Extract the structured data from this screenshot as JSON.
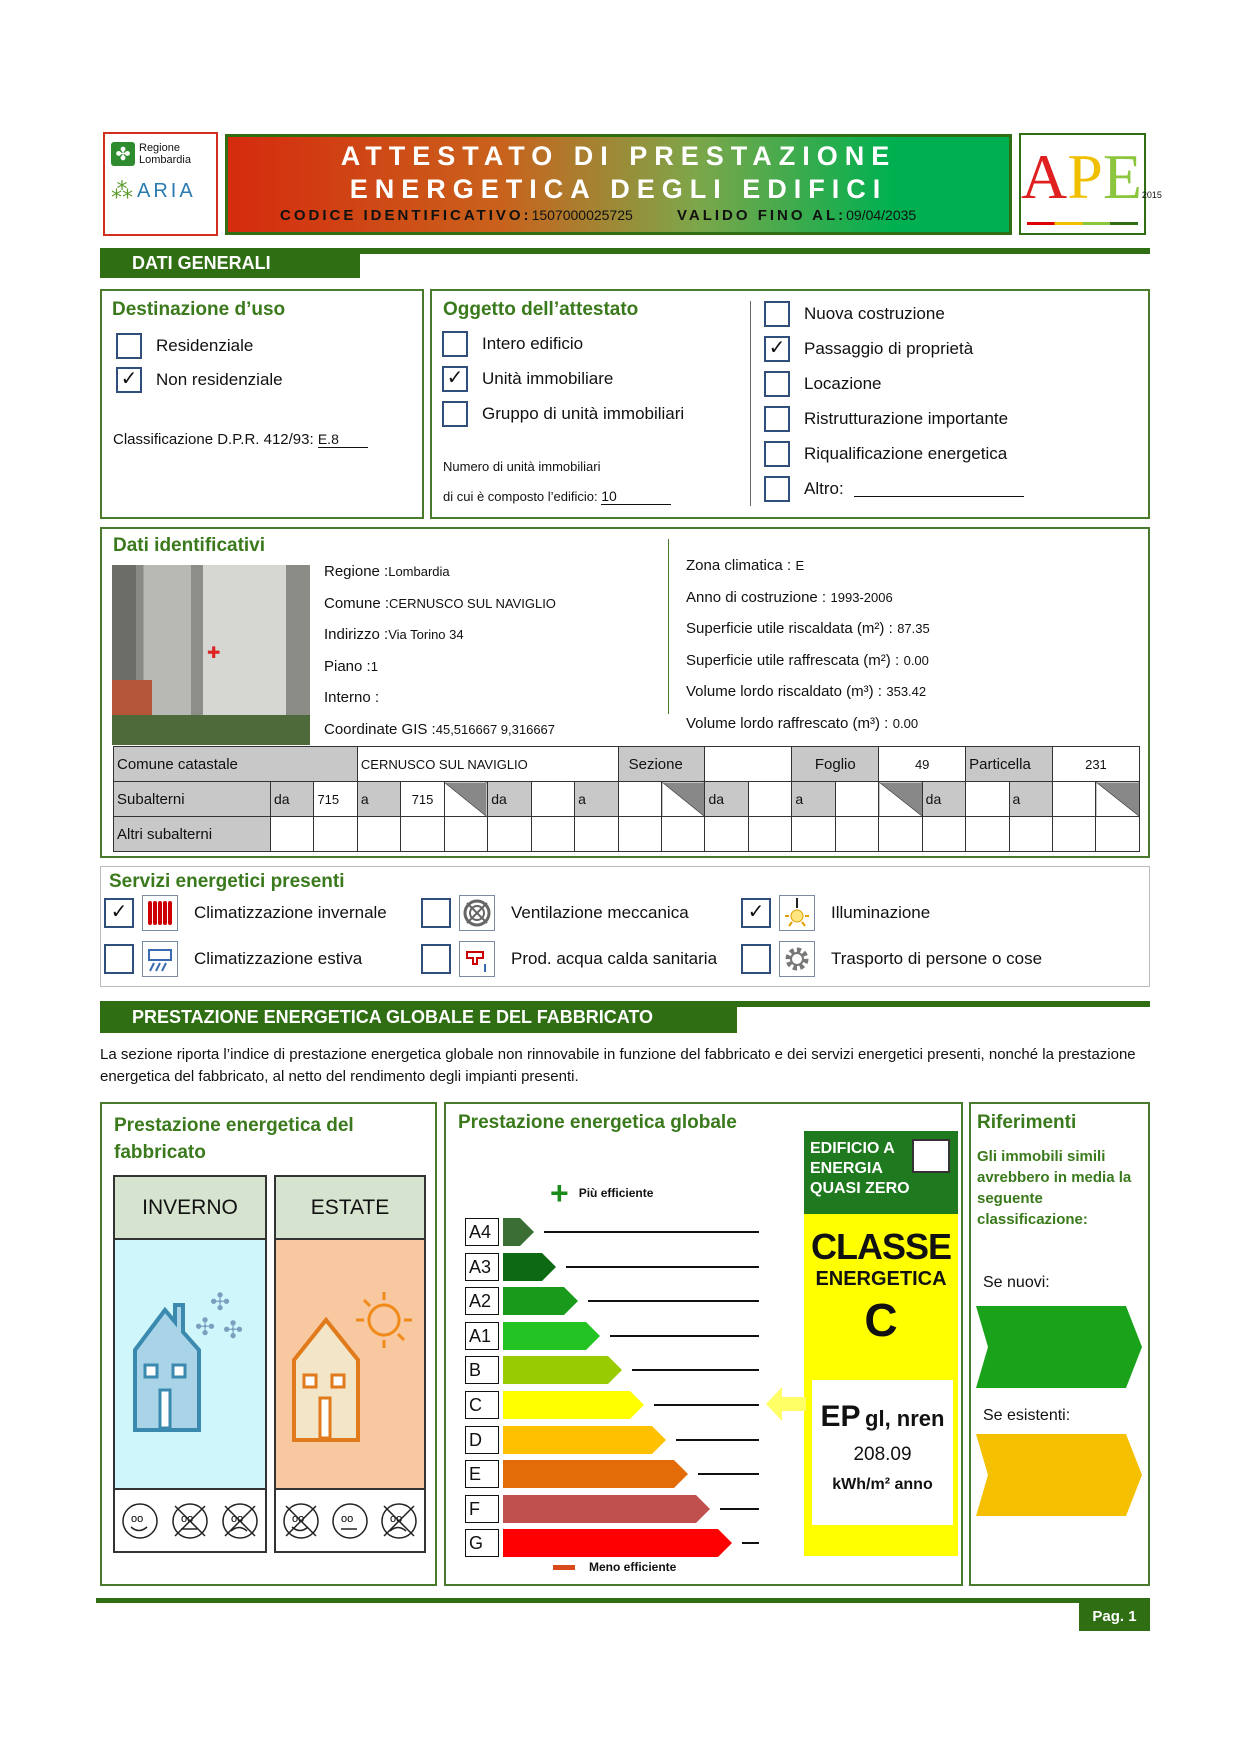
{
  "header": {
    "logo_region": "Regione Lombardia",
    "logo_aria": "ARIA",
    "title_line1": "ATTESTATO DI PRESTAZIONE",
    "title_line2": "ENERGETICA DEGLI EDIFICI",
    "codice_label": "CODICE IDENTIFICATIVO:",
    "codice_value": "1507000025725",
    "valido_label": "VALIDO FINO AL:",
    "valido_value": "09/04/2035",
    "ape_logo": "APE",
    "ape_year": "2015"
  },
  "dati_generali": {
    "section_title": "DATI GENERALI",
    "destinazione": {
      "title": "Destinazione d’uso",
      "options": [
        {
          "label": "Residenziale",
          "checked": false
        },
        {
          "label": "Non residenziale",
          "checked": true
        }
      ],
      "classificazione_label": "Classificazione D.P.R. 412/93:",
      "classificazione_value": "E.8"
    },
    "oggetto": {
      "title": "Oggetto dell’attestato",
      "options": [
        {
          "label": "Intero edificio",
          "checked": false
        },
        {
          "label": "Unità immobiliare",
          "checked": true
        },
        {
          "label": "Gruppo di unità immobiliari",
          "checked": false
        }
      ],
      "numero_label1": "Numero di unità immobiliari",
      "numero_label2": "di cui è composto l’edificio:",
      "numero_value": "10"
    },
    "motivazione": [
      {
        "label": "Nuova costruzione",
        "checked": false
      },
      {
        "label": "Passaggio di proprietà",
        "checked": true
      },
      {
        "label": "Locazione",
        "checked": false
      },
      {
        "label": "Ristrutturazione importante",
        "checked": false
      },
      {
        "label": "Riqualificazione energetica",
        "checked": false
      },
      {
        "label": "Altro:",
        "checked": false
      }
    ]
  },
  "identificativi": {
    "title": "Dati identificativi",
    "left": [
      {
        "label": "Regione :",
        "value": "Lombardia"
      },
      {
        "label": "Comune :",
        "value": "CERNUSCO SUL NAVIGLIO"
      },
      {
        "label": "Indirizzo :",
        "value": "Via Torino 34"
      },
      {
        "label": "Piano :",
        "value": "1"
      },
      {
        "label": "Interno :",
        "value": ""
      },
      {
        "label": "Coordinate GIS :",
        "value": "45,516667 9,316667"
      }
    ],
    "right": [
      {
        "label": "Zona climatica :",
        "value": "E"
      },
      {
        "label": "Anno di costruzione :",
        "value": "1993-2006"
      },
      {
        "label": "Superficie utile riscaldata (m²) :",
        "value": "87.35"
      },
      {
        "label": "Superficie utile raffrescata (m²) :",
        "value": "0.00"
      },
      {
        "label": "Volume lordo riscaldato (m³) :",
        "value": "353.42"
      },
      {
        "label": "Volume lordo raffrescato (m³) :",
        "value": "0.00"
      }
    ],
    "catasto": {
      "comune_label": "Comune catastale",
      "comune_value": "CERNUSCO SUL NAVIGLIO",
      "sezione_label": "Sezione",
      "sezione_value": "",
      "foglio_label": "Foglio",
      "foglio_value": "49",
      "particella_label": "Particella",
      "particella_value": "231",
      "subalterni_label": "Subalterni",
      "da": "da",
      "a": "a",
      "sub_da": "715",
      "sub_a": "715",
      "altri_label": "Altri subalterni"
    }
  },
  "servizi": {
    "title": "Servizi energetici presenti",
    "items": [
      {
        "label": "Climatizzazione invernale",
        "checked": true,
        "icon": "radiator-icon"
      },
      {
        "label": "Climatizzazione estiva",
        "checked": false,
        "icon": "air-conditioner-icon"
      },
      {
        "label": "Ventilazione meccanica",
        "checked": false,
        "icon": "fan-icon"
      },
      {
        "label": "Prod. acqua calda sanitaria",
        "checked": false,
        "icon": "faucet-icon"
      },
      {
        "label": "Illuminazione",
        "checked": true,
        "icon": "lightbulb-icon"
      },
      {
        "label": "Trasporto di persone o cose",
        "checked": false,
        "icon": "gear-icon"
      }
    ]
  },
  "prestazione": {
    "section_title": "PRESTAZIONE ENERGETICA GLOBALE  E DEL FABBRICATO",
    "description": "La sezione riporta l’indice di prestazione energetica globale non rinnovabile in funzione del fabbricato e dei servizi energetici presenti, nonché la prestazione energetica del fabbricato, al netto del rendimento degli impianti presenti.",
    "fabbricato": {
      "title": "Prestazione energetica del fabbricato",
      "inverno": "INVERNO",
      "estate": "ESTATE",
      "inverno_rating": "good",
      "estate_rating": "medium"
    },
    "globale": {
      "title": "Prestazione energetica globale",
      "piu": "Più efficiente",
      "meno": "Meno efficiente",
      "classes": [
        {
          "label": "A4",
          "color": "#3b6e35"
        },
        {
          "label": "A3",
          "color": "#0e6a12"
        },
        {
          "label": "A2",
          "color": "#1a9a1a"
        },
        {
          "label": "A1",
          "color": "#22c322"
        },
        {
          "label": "B",
          "color": "#99cc00"
        },
        {
          "label": "C",
          "color": "#ffff00"
        },
        {
          "label": "D",
          "color": "#ffc000"
        },
        {
          "label": "E",
          "color": "#e36c09"
        },
        {
          "label": "F",
          "color": "#c0504d"
        },
        {
          "label": "G",
          "color": "#ff0000"
        }
      ],
      "nzeb": "EDIFICIO A ENERGIA QUASI ZERO",
      "nzeb_checked": false,
      "classe_label": "CLASSE",
      "energetica_label": "ENERGETICA",
      "classe_value": "C",
      "ep_label": "EP",
      "ep_sub": "gl, nren",
      "ep_value": "208.09",
      "ep_unit": "kWh/m² anno"
    },
    "riferimenti": {
      "title": "Riferimenti",
      "text": "Gli immobili simili avrebbero in media la seguente classificazione:",
      "nuovi": "Se nuovi:",
      "esistenti": "Se esistenti:",
      "nuovi_color": "#1aa31a",
      "esistenti_color": "#f5c000"
    }
  },
  "footer": {
    "page": "Pag. 1"
  }
}
